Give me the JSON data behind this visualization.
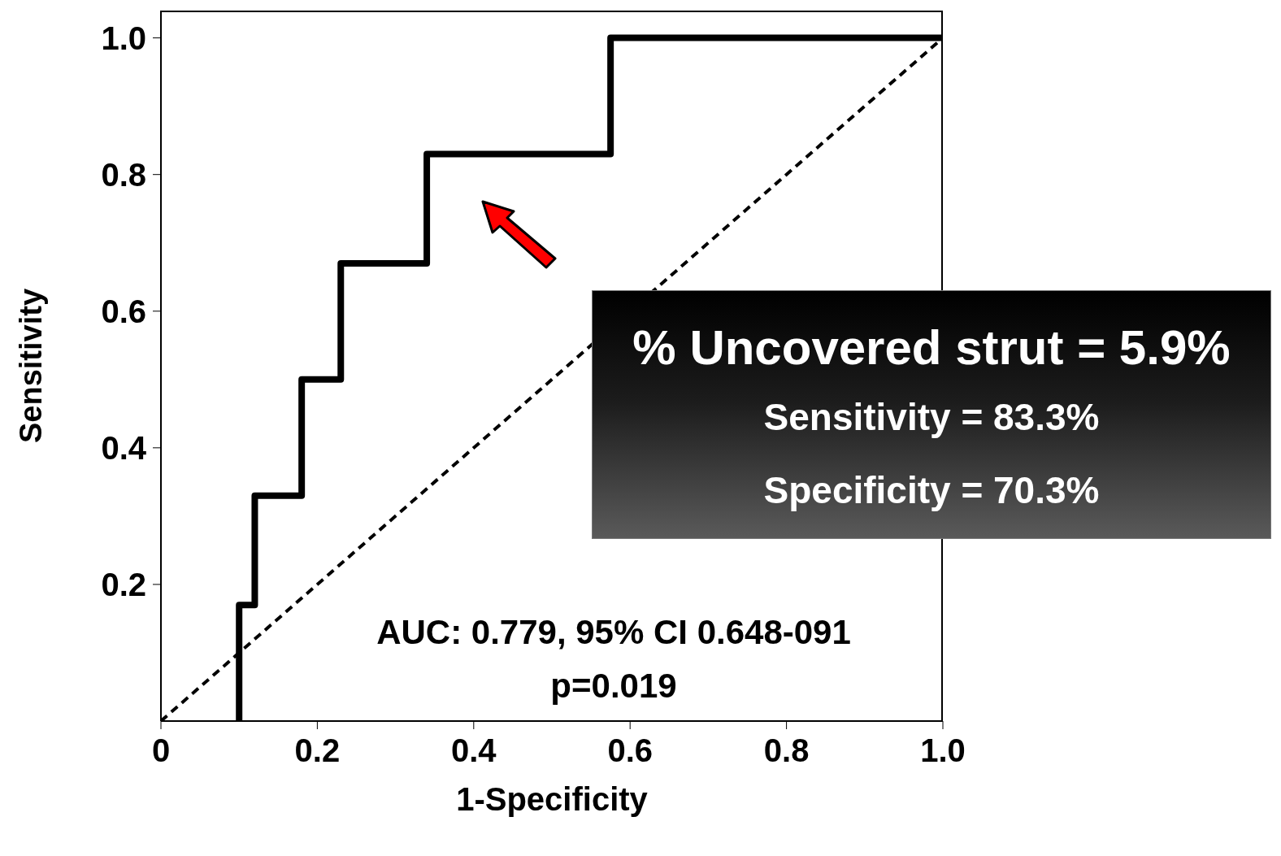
{
  "chart_data": {
    "type": "step",
    "xlabel": "1-Specificity",
    "ylabel": "Sensitivity",
    "xlim": [
      0,
      1
    ],
    "ylim": [
      0,
      1.04
    ],
    "xticks": [
      {
        "value": 0,
        "label": "0"
      },
      0.2,
      0.4,
      0.6,
      0.8,
      {
        "value": 1,
        "label": "1.0"
      }
    ],
    "yticks": [
      0.2,
      0.4,
      0.6,
      0.8,
      {
        "value": 1,
        "label": "1.0"
      }
    ],
    "marker": "none",
    "series": [
      {
        "type": "step",
        "color": "#000000",
        "line_style": "solid",
        "x": [
          0.1,
          0.12,
          0.18,
          0.23,
          0.34,
          0.575,
          1.0
        ],
        "values": [
          0,
          0.17,
          0.33,
          0.5,
          0.67,
          0.83,
          1.0
        ]
      },
      {
        "type": "line",
        "color": "#000000",
        "line_style": "dashed",
        "x": [
          0,
          1
        ],
        "values": [
          0,
          1
        ]
      }
    ],
    "annotations": [
      "% Uncovered strut = 5.9%",
      "Sensitivity = 83.3%",
      "Specificity = 70.3%",
      "AUC: 0.779, 95% CI 0.648-091",
      "p=0.019"
    ]
  }
}
